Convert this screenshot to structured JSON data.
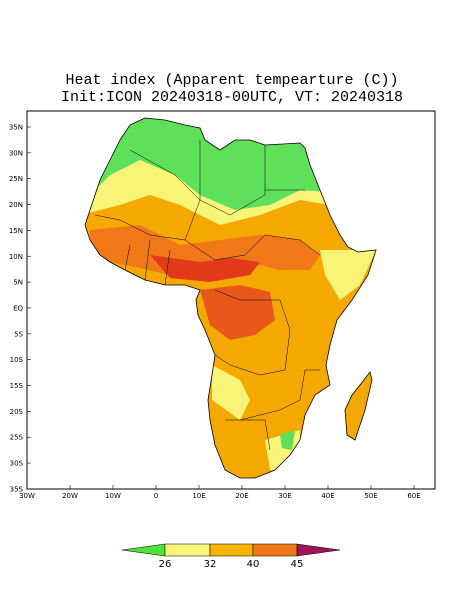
{
  "header": {
    "title": "Heat index (Apparent tempearture (C))",
    "subtitle": "Init:ICON 20240318-00UTC, VT: 20240318"
  },
  "x_axis": {
    "labels": [
      "30W",
      "20W",
      "10W",
      "0",
      "10E",
      "20E",
      "30E",
      "40E",
      "50E",
      "60E"
    ]
  },
  "y_axis": {
    "labels": [
      "35N",
      "30N",
      "25N",
      "20N",
      "15N",
      "10N",
      "5N",
      "EQ",
      "5S",
      "10S",
      "15S",
      "20S",
      "25S",
      "30S",
      "35S"
    ]
  },
  "colorbar": {
    "labels": [
      "26",
      "32",
      "40",
      "45"
    ]
  }
}
